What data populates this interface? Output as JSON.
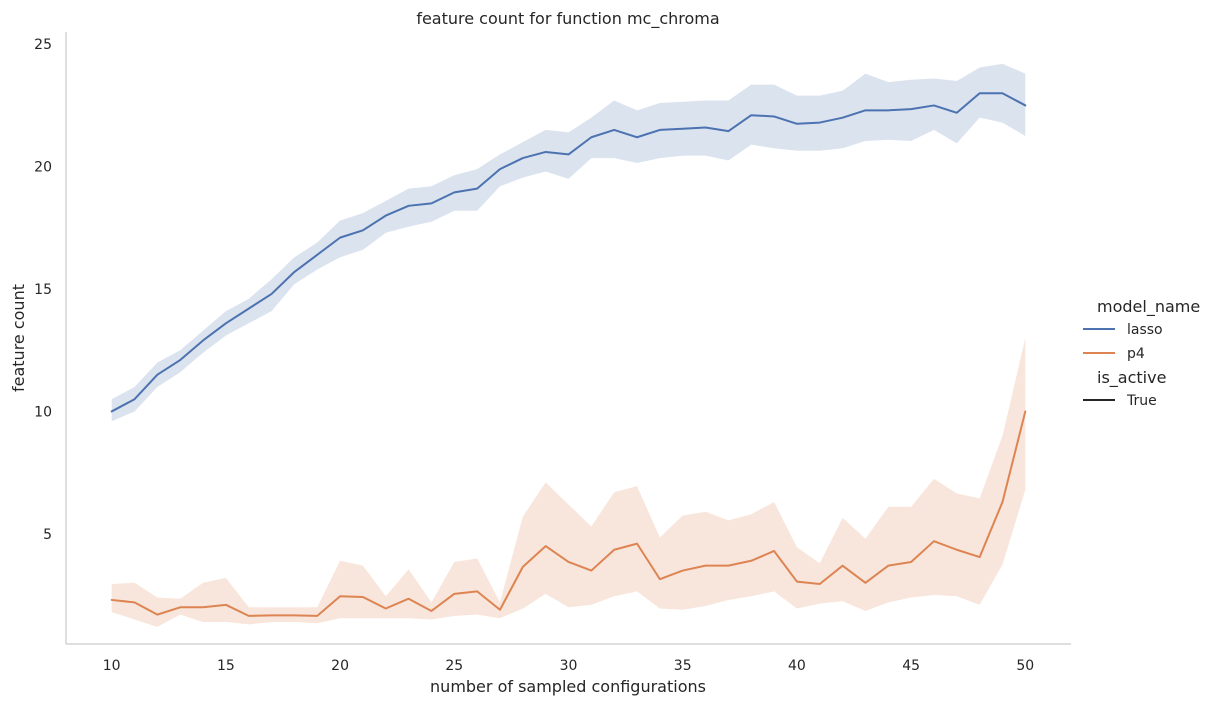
{
  "chart_data": {
    "type": "line",
    "title": "feature count for function mc_chroma",
    "xlabel": "number of sampled configurations",
    "ylabel": "feature count",
    "xlim": [
      8,
      52
    ],
    "ylim": [
      0.5,
      25.5
    ],
    "xticks": [
      10,
      15,
      20,
      25,
      30,
      35,
      40,
      45,
      50
    ],
    "yticks": [
      5,
      10,
      15,
      20,
      25
    ],
    "grid": false,
    "legend": {
      "placement": "right",
      "hue_title": "model_name",
      "style_title": "is_active",
      "style_entry": "True",
      "style_color": "#262626"
    },
    "series": [
      {
        "name": "lasso",
        "color": "#4c72b0",
        "band_opacity": 0.2,
        "x": [
          10,
          11,
          12,
          13,
          14,
          15,
          16,
          17,
          18,
          19,
          20,
          21,
          22,
          23,
          24,
          25,
          26,
          27,
          28,
          29,
          30,
          31,
          32,
          33,
          34,
          35,
          36,
          37,
          38,
          39,
          40,
          41,
          42,
          43,
          44,
          45,
          46,
          47,
          48,
          49,
          50
        ],
        "y": [
          10.0,
          10.5,
          11.5,
          12.1,
          12.9,
          13.6,
          14.2,
          14.8,
          15.7,
          16.4,
          17.1,
          17.4,
          18.0,
          18.4,
          18.5,
          18.95,
          19.1,
          19.9,
          20.35,
          20.6,
          20.5,
          21.2,
          21.5,
          21.2,
          21.5,
          21.55,
          21.6,
          21.45,
          22.1,
          22.05,
          21.75,
          21.8,
          22.0,
          22.3,
          22.3,
          22.35,
          22.5,
          22.2,
          23.0,
          23.0,
          22.5
        ],
        "y_lower": [
          9.6,
          10.0,
          11.0,
          11.6,
          12.4,
          13.1,
          13.6,
          14.1,
          15.2,
          15.8,
          16.3,
          16.6,
          17.3,
          17.55,
          17.75,
          18.2,
          18.2,
          19.2,
          19.55,
          19.8,
          19.5,
          20.35,
          20.35,
          20.15,
          20.35,
          20.45,
          20.45,
          20.25,
          20.9,
          20.75,
          20.65,
          20.65,
          20.75,
          21.05,
          21.1,
          21.05,
          21.5,
          20.95,
          22.0,
          21.8,
          21.25
        ],
        "y_upper": [
          10.5,
          11.0,
          12.0,
          12.5,
          13.3,
          14.1,
          14.6,
          15.4,
          16.3,
          16.9,
          17.8,
          18.1,
          18.6,
          19.1,
          19.2,
          19.65,
          19.9,
          20.5,
          21.0,
          21.5,
          21.4,
          22.0,
          22.7,
          22.3,
          22.6,
          22.65,
          22.7,
          22.7,
          23.35,
          23.35,
          22.9,
          22.9,
          23.1,
          23.8,
          23.45,
          23.55,
          23.6,
          23.5,
          24.05,
          24.2,
          23.8
        ]
      },
      {
        "name": "p4",
        "color": "#dd8452",
        "band_opacity": 0.2,
        "x": [
          10,
          11,
          12,
          13,
          14,
          15,
          16,
          17,
          18,
          19,
          20,
          21,
          22,
          23,
          24,
          25,
          26,
          27,
          28,
          29,
          30,
          31,
          32,
          33,
          34,
          35,
          36,
          37,
          38,
          39,
          40,
          41,
          42,
          43,
          44,
          45,
          46,
          47,
          48,
          49,
          50
        ],
        "y": [
          2.3,
          2.2,
          1.7,
          2.0,
          2.0,
          2.1,
          1.65,
          1.67,
          1.67,
          1.65,
          2.45,
          2.42,
          1.95,
          2.35,
          1.85,
          2.55,
          2.65,
          1.9,
          3.65,
          4.5,
          3.85,
          3.5,
          4.35,
          4.6,
          3.15,
          3.5,
          3.7,
          3.7,
          3.9,
          4.3,
          3.05,
          2.95,
          3.7,
          3.0,
          3.7,
          3.85,
          4.7,
          4.35,
          4.05,
          6.3,
          10.0
        ],
        "y_lower": [
          1.8,
          1.5,
          1.2,
          1.7,
          1.4,
          1.4,
          1.3,
          1.4,
          1.4,
          1.35,
          1.55,
          1.55,
          1.55,
          1.55,
          1.5,
          1.65,
          1.7,
          1.55,
          1.95,
          2.55,
          2.0,
          2.1,
          2.45,
          2.65,
          1.95,
          1.9,
          2.05,
          2.3,
          2.45,
          2.65,
          1.95,
          2.15,
          2.25,
          1.85,
          2.2,
          2.4,
          2.5,
          2.45,
          2.1,
          3.75,
          6.8
        ],
        "y_upper": [
          2.95,
          3.0,
          2.4,
          2.35,
          3.0,
          3.2,
          2.0,
          2.0,
          2.0,
          2.0,
          3.9,
          3.7,
          2.45,
          3.55,
          2.2,
          3.85,
          4.0,
          2.2,
          5.7,
          7.1,
          6.2,
          5.3,
          6.7,
          6.95,
          4.85,
          5.75,
          5.9,
          5.55,
          5.8,
          6.3,
          4.45,
          3.8,
          5.65,
          4.8,
          6.1,
          6.1,
          7.25,
          6.65,
          6.45,
          9.0,
          13.0
        ]
      }
    ]
  }
}
